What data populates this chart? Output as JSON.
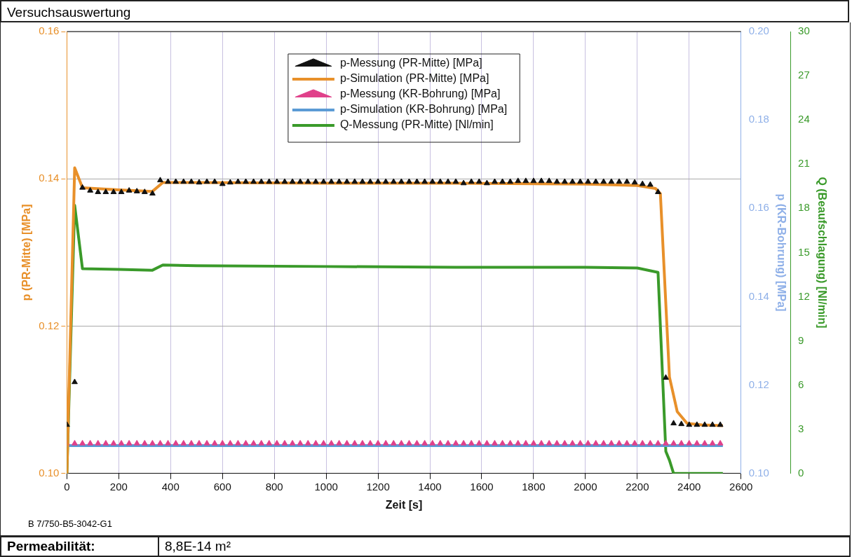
{
  "chart_data": {
    "type": "line",
    "title": "Versuchsauswertung",
    "xlabel": "Zeit [s]",
    "ylabel": "p (PR-Mitte) [MPa]",
    "y2label": "p (KR-Bohrung) [MPa]",
    "y3label": "Q (Beaufschlagung) [Nl/min]",
    "annotations": [
      "B 7/750-B5-3042-G1",
      "Permeabilität:",
      "8,8E-14 m²"
    ],
    "legend": "top",
    "grid": true,
    "xlim": [
      0,
      2600
    ],
    "xticks": [
      0,
      200,
      400,
      600,
      800,
      1000,
      1200,
      1400,
      1600,
      1800,
      2000,
      2200,
      2400,
      2600
    ],
    "ylim": [
      0.1,
      0.16
    ],
    "yticks": [
      {
        "value": 0.1,
        "label": "0.10"
      },
      0.12,
      0.14,
      0.16
    ],
    "y2lim": [
      0.1,
      0.2
    ],
    "y2ticks": [
      {
        "value": 0.1,
        "label": "0.10"
      },
      0.12,
      0.14,
      0.16,
      0.18,
      {
        "value": 0.2,
        "label": "0.20"
      }
    ],
    "y3lim": [
      0,
      30
    ],
    "y3ticks": [
      0,
      3,
      6,
      9,
      12,
      15,
      18,
      21,
      24,
      27,
      30
    ],
    "x": [
      0,
      30,
      60,
      90,
      120,
      150,
      180,
      210,
      240,
      270,
      300,
      330,
      360,
      390,
      420,
      450,
      480,
      510,
      540,
      570,
      600,
      630,
      660,
      690,
      720,
      750,
      780,
      810,
      840,
      870,
      900,
      930,
      960,
      990,
      1020,
      1050,
      1080,
      1110,
      1140,
      1170,
      1200,
      1230,
      1260,
      1290,
      1320,
      1350,
      1380,
      1410,
      1440,
      1470,
      1500,
      1530,
      1560,
      1590,
      1620,
      1650,
      1680,
      1710,
      1740,
      1770,
      1800,
      1830,
      1860,
      1890,
      1920,
      1950,
      1980,
      2010,
      2040,
      2070,
      2100,
      2130,
      2160,
      2190,
      2220,
      2250,
      2280,
      2310,
      2340,
      2370,
      2400,
      2430,
      2460,
      2490,
      2520
    ],
    "series": [
      {
        "name": "p-Messung (PR-Mitte) [MPa]",
        "type": "scatter",
        "marker": "triangle",
        "color": "#111111",
        "values": [
          0.1066,
          0.1124,
          0.1388,
          0.1384,
          0.1382,
          0.1382,
          0.1382,
          0.1382,
          0.1384,
          0.1383,
          0.1382,
          0.138,
          0.1398,
          0.1396,
          0.1396,
          0.1396,
          0.1396,
          0.1395,
          0.1396,
          0.1396,
          0.1393,
          0.1395,
          0.1396,
          0.1396,
          0.1396,
          0.1396,
          0.1396,
          0.1396,
          0.1396,
          0.1396,
          0.1396,
          0.1396,
          0.1396,
          0.1396,
          0.1396,
          0.1396,
          0.1396,
          0.1396,
          0.1396,
          0.1396,
          0.1396,
          0.1396,
          0.1396,
          0.1396,
          0.1396,
          0.1396,
          0.1396,
          0.1396,
          0.1396,
          0.1396,
          0.1396,
          0.1394,
          0.1396,
          0.1396,
          0.1394,
          0.1396,
          0.1396,
          0.1396,
          0.1397,
          0.1397,
          0.1397,
          0.1397,
          0.1397,
          0.1396,
          0.1396,
          0.1396,
          0.1396,
          0.1396,
          0.1396,
          0.1396,
          0.1396,
          0.1396,
          0.1396,
          0.1395,
          0.1393,
          0.1392,
          0.1382,
          0.113,
          0.1068,
          0.1067,
          0.1066,
          0.1066,
          0.1066,
          0.1066,
          0.1066
        ]
      },
      {
        "name": "p-Simulation (PR-Mitte) [MPa]",
        "marker": "none",
        "color": "#e8902a",
        "x": [
          0,
          30,
          60,
          200,
          330,
          370,
          500,
          1000,
          1500,
          2000,
          2200,
          2270,
          2289,
          2324,
          2354,
          2392,
          2450,
          2530
        ],
        "values": [
          0.1,
          0.1415,
          0.1388,
          0.1385,
          0.1383,
          0.1395,
          0.1395,
          0.1394,
          0.1394,
          0.1393,
          0.1391,
          0.1387,
          0.138,
          0.1131,
          0.1084,
          0.1068,
          0.1066,
          0.1065
        ]
      },
      {
        "name": "p-Messung (KR-Bohrung) [MPa]",
        "type": "scatter",
        "marker": "triangle",
        "axis": "y2",
        "color": "#e0408a",
        "values": [
          0.1068,
          0.1068,
          0.1068,
          0.1068,
          0.1068,
          0.1068,
          0.1068,
          0.1068,
          0.1068,
          0.1068,
          0.1068,
          0.1068,
          0.1068,
          0.1068,
          0.1068,
          0.1068,
          0.1068,
          0.1068,
          0.1068,
          0.1068,
          0.1068,
          0.1068,
          0.1068,
          0.1068,
          0.1068,
          0.1068,
          0.1068,
          0.1068,
          0.1068,
          0.1068,
          0.1068,
          0.1068,
          0.1068,
          0.1068,
          0.1068,
          0.1068,
          0.1068,
          0.1068,
          0.1068,
          0.1068,
          0.1068,
          0.1068,
          0.1068,
          0.1068,
          0.1068,
          0.1068,
          0.1068,
          0.1068,
          0.1068,
          0.1068,
          0.1068,
          0.1068,
          0.1068,
          0.1068,
          0.1068,
          0.1068,
          0.1068,
          0.1068,
          0.1068,
          0.1068,
          0.1068,
          0.1068,
          0.1068,
          0.1068,
          0.1068,
          0.1068,
          0.1068,
          0.1068,
          0.1068,
          0.1068,
          0.1068,
          0.1068,
          0.1068,
          0.1068,
          0.1068,
          0.1068,
          0.1068,
          0.1068,
          0.1068,
          0.1068,
          0.1068,
          0.1068,
          0.1068,
          0.1068,
          0.1068
        ]
      },
      {
        "name": "p-Simulation (KR-Bohrung) [MPa]",
        "marker": "none",
        "axis": "y2",
        "color": "#5b9bd5",
        "x": [
          0,
          2530
        ],
        "values": [
          0.1063,
          0.1063
        ]
      },
      {
        "name": "Q-Messung (PR-Mitte) [Nl/min]",
        "marker": "none",
        "axis": "y3",
        "color": "#3a9a2a",
        "x": [
          0,
          30,
          60,
          200,
          330,
          370,
          500,
          1000,
          1500,
          2000,
          2200,
          2280,
          2310,
          2324,
          2340,
          2530
        ],
        "values": [
          0,
          18.2,
          13.9,
          13.85,
          13.8,
          14.15,
          14.1,
          14.05,
          14,
          14,
          13.95,
          13.65,
          1.5,
          0.9,
          0,
          0
        ]
      }
    ]
  }
}
